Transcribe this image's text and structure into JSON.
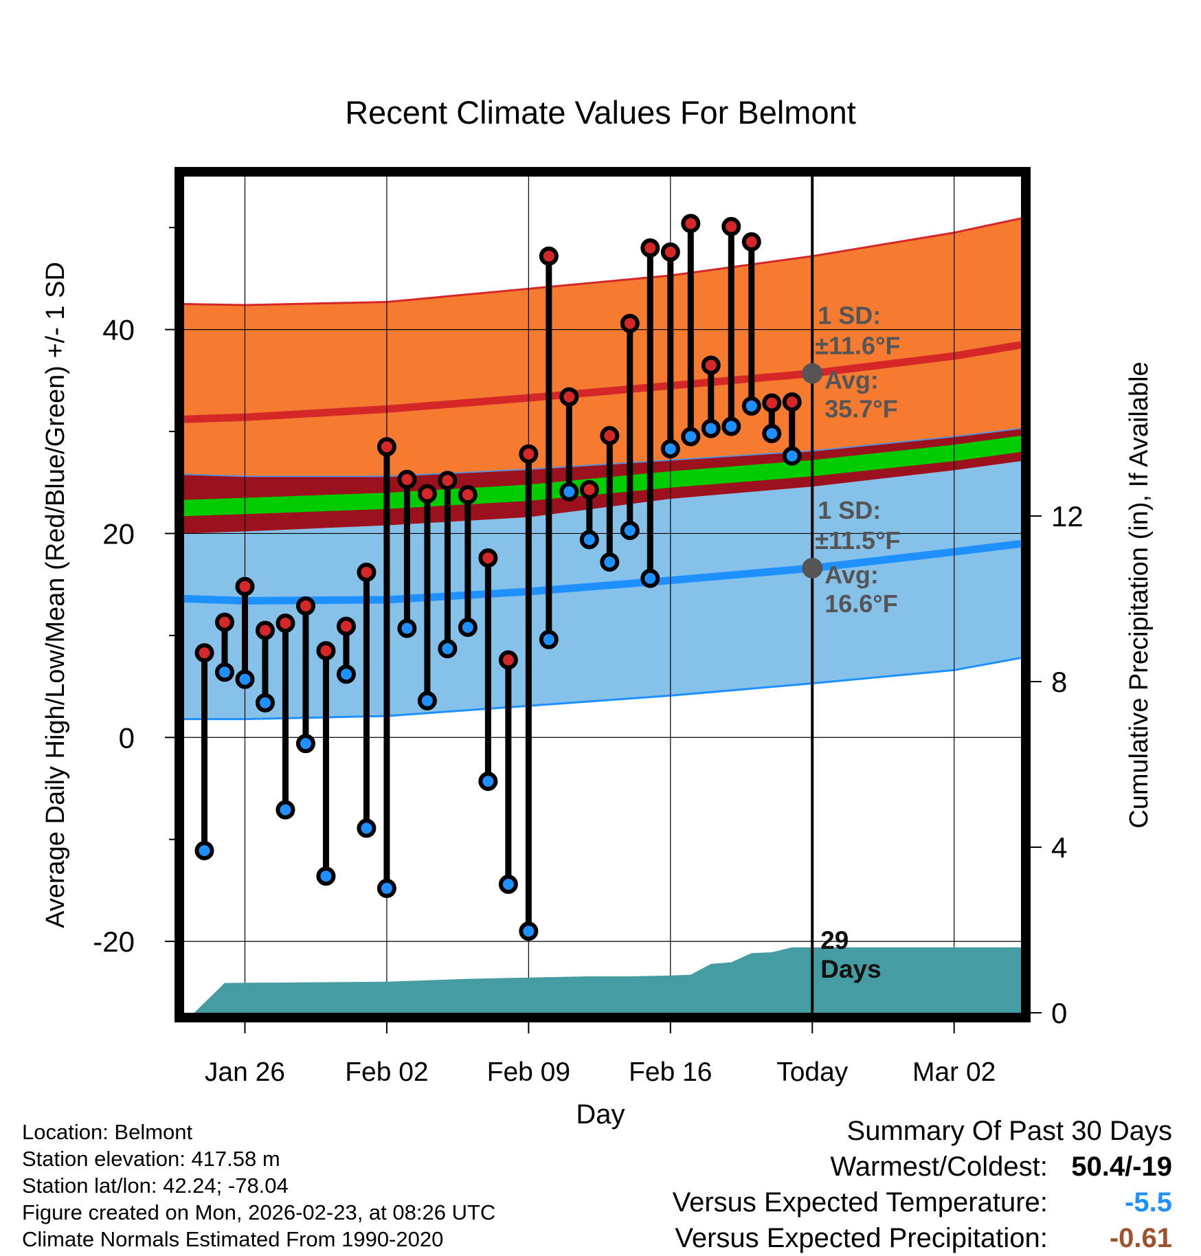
{
  "chart_data": {
    "type": "line",
    "title": "Recent Climate Values For Belmont",
    "xlabel": "Day",
    "ylabel": "Average Daily High/Low/Mean (Red/Blue/Green) +/- 1 SD",
    "y2label": "Cumulative Precipitation (in), If Available",
    "ylim": [
      -27,
      55
    ],
    "y_ticks": [
      -20,
      0,
      20,
      40
    ],
    "y2lim": [
      0,
      20.2
    ],
    "y2_ticks": [
      0,
      4,
      8,
      12
    ],
    "xlim": [
      -3.0,
      38.3
    ],
    "x_tick_positions": [
      0,
      7,
      14,
      21,
      28,
      35
    ],
    "x_tick_labels": [
      "Jan 26",
      "Feb 02",
      "Feb 09",
      "Feb 16",
      "Today",
      "Mar 02"
    ],
    "today_x": 28,
    "normals": {
      "x": [
        -3.0,
        0,
        7,
        14,
        21,
        28,
        35,
        38.3
      ],
      "high_avg": [
        31.2,
        31.4,
        32.2,
        33.3,
        34.5,
        35.7,
        37.4,
        38.5
      ],
      "high_upper": [
        42.5,
        42.4,
        42.7,
        44.0,
        45.3,
        47.2,
        49.5,
        50.9
      ],
      "high_lower": [
        25.8,
        25.6,
        25.6,
        26.3,
        27.2,
        28.1,
        29.5,
        30.3
      ],
      "mean_avg": [
        22.5,
        22.7,
        23.2,
        24.0,
        25.3,
        26.4,
        27.9,
        28.8
      ],
      "mean_half_width": 0.8,
      "low_avg": [
        13.6,
        13.4,
        13.5,
        14.3,
        15.4,
        16.6,
        18.2,
        19.0
      ],
      "low_upper": [
        20.0,
        20.2,
        20.8,
        21.6,
        23.4,
        24.6,
        26.2,
        27.1
      ],
      "low_lower": [
        1.8,
        1.8,
        2.1,
        3.1,
        4.1,
        5.3,
        6.6,
        7.8
      ]
    },
    "high_sd_label": "1 SD:",
    "high_sd_value": "±11.6°F",
    "high_avg_label": "Avg:",
    "high_avg_value": "35.7°F",
    "low_sd_label": "1 SD:",
    "low_sd_value": "±11.5°F",
    "low_avg_label": "Avg:",
    "low_avg_value": "16.6°F",
    "today_high_avg": 35.7,
    "today_low_avg": 16.6,
    "series": [
      {
        "name": "Daily High",
        "x": [
          -2,
          -1,
          0,
          1,
          2,
          3,
          4,
          5,
          6,
          7,
          8,
          9,
          10,
          11,
          12,
          13,
          14,
          15,
          16,
          17,
          18,
          19,
          20,
          21,
          22,
          23,
          24,
          25,
          26,
          27
        ],
        "values": [
          8.3,
          11.3,
          14.8,
          10.5,
          11.2,
          12.9,
          8.5,
          10.9,
          16.2,
          28.5,
          25.3,
          23.9,
          25.2,
          23.8,
          17.6,
          7.6,
          27.8,
          47.2,
          33.4,
          24.3,
          29.6,
          40.6,
          48.0,
          47.6,
          50.4,
          36.5,
          50.1,
          48.6,
          32.8,
          32.9
        ]
      },
      {
        "name": "Daily Low",
        "x": [
          -2,
          -1,
          0,
          1,
          2,
          3,
          4,
          5,
          6,
          7,
          8,
          9,
          10,
          11,
          12,
          13,
          14,
          15,
          16,
          17,
          18,
          19,
          20,
          21,
          22,
          23,
          24,
          25,
          26,
          27
        ],
        "values": [
          -11.1,
          6.4,
          5.7,
          3.4,
          -7.1,
          -0.6,
          -13.6,
          6.2,
          -8.9,
          -14.8,
          10.7,
          3.6,
          8.7,
          10.8,
          -4.3,
          -14.4,
          -19.0,
          9.6,
          24.1,
          19.4,
          17.2,
          20.3,
          15.6,
          28.3,
          29.5,
          30.3,
          30.5,
          32.5,
          29.8,
          27.6
        ]
      },
      {
        "name": "Cumulative Precipitation",
        "x": [
          -2.5,
          -1,
          7,
          11,
          14,
          17,
          19,
          21,
          22,
          23,
          24,
          25,
          26,
          27,
          28,
          38.3
        ],
        "values": [
          0,
          0.72,
          0.75,
          0.82,
          0.85,
          0.88,
          0.88,
          0.9,
          0.92,
          1.18,
          1.22,
          1.44,
          1.46,
          1.58,
          1.58,
          1.58
        ]
      }
    ],
    "precip_days_label": [
      "29",
      "Days"
    ]
  },
  "footer": {
    "location": "Location: Belmont",
    "elevation": "Station elevation: 417.58 m",
    "latlon": "Station lat/lon: 42.24; -78.04",
    "created": "Figure created on Mon, 2026-02-23, at 08:26 UTC",
    "normals": "Climate Normals Estimated From 1990-2020"
  },
  "summary": {
    "title": "Summary Of Past 30 Days",
    "warm_cold_label": "Warmest/Coldest:",
    "warm_cold_value": "50.4/-19",
    "temp_label": "Versus Expected Temperature:",
    "temp_value": "-5.5",
    "precip_label": "Versus Expected Precipitation:",
    "precip_value": "-0.61",
    "temp_color": "#1E90FF",
    "precip_color": "#A0522D"
  },
  "colors": {
    "high_band": "#F47B2F",
    "high_line": "#D62728",
    "mean_band": "#9B111E",
    "mean_line": "#00CC00",
    "low_band": "#85C1E9",
    "low_line": "#1E90FF",
    "precip": "#469CA3",
    "high_dot": "#D62728",
    "low_dot": "#1E90FF",
    "annotation": "#555555"
  }
}
